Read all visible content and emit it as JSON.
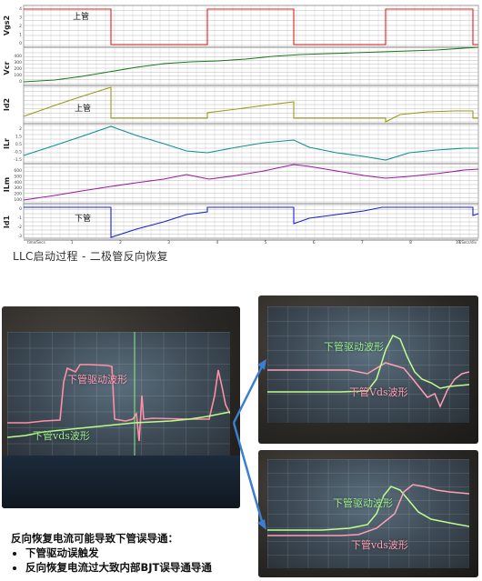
{
  "simulation": {
    "channels": [
      {
        "name": "Vgs2",
        "ticks": [
          "4",
          "3",
          "2",
          "1",
          "0"
        ],
        "color": "#e02020"
      },
      {
        "name": "Vcr",
        "ticks": [
          "400",
          "300",
          "200",
          "100",
          "0"
        ],
        "color": "#1a7a1a"
      },
      {
        "name": "Id2",
        "ticks": [
          "",
          "",
          "",
          "",
          ""
        ],
        "color": "#9a9a10"
      },
      {
        "name": "ILr",
        "ticks": [
          "2",
          "1.5",
          "0.5",
          "-0.5",
          "-1.5"
        ],
        "color": "#109090"
      },
      {
        "name": "ILm",
        "ticks": [
          "600",
          "500",
          "400",
          "300",
          "200",
          "100"
        ],
        "color": "#9a1aa0"
      },
      {
        "name": "Id1",
        "ticks": [
          "0",
          "-1",
          "-2",
          "-3"
        ],
        "color": "#1a20d0"
      }
    ],
    "annotations": {
      "top_switch_1": "上管",
      "top_switch_2": "上管",
      "bottom_switch": "下管"
    },
    "x_axis": {
      "ticks": [
        "0",
        "1",
        "2",
        "3",
        "4",
        "5",
        "6",
        "7",
        "8",
        "9"
      ],
      "left_label": "time/Secs",
      "right_label": "1.5Secs/div"
    }
  },
  "caption": "LLC启动过程 - 二极管反向恢复",
  "scope_photos": {
    "main": {
      "labels": [
        "下管驱动波形",
        "下管vds波形"
      ]
    },
    "top_right": {
      "labels": [
        "下管驱动波形",
        "下管Vds波形"
      ]
    },
    "bottom_right": {
      "labels": [
        "下管驱动波形",
        "下管vds波形"
      ]
    }
  },
  "notes": {
    "heading": "反向恢复电流可能导致下管误导通：",
    "bullets": [
      "下管驱动误触发",
      "反向恢复电流过大致内部BJT误导通导通"
    ]
  }
}
